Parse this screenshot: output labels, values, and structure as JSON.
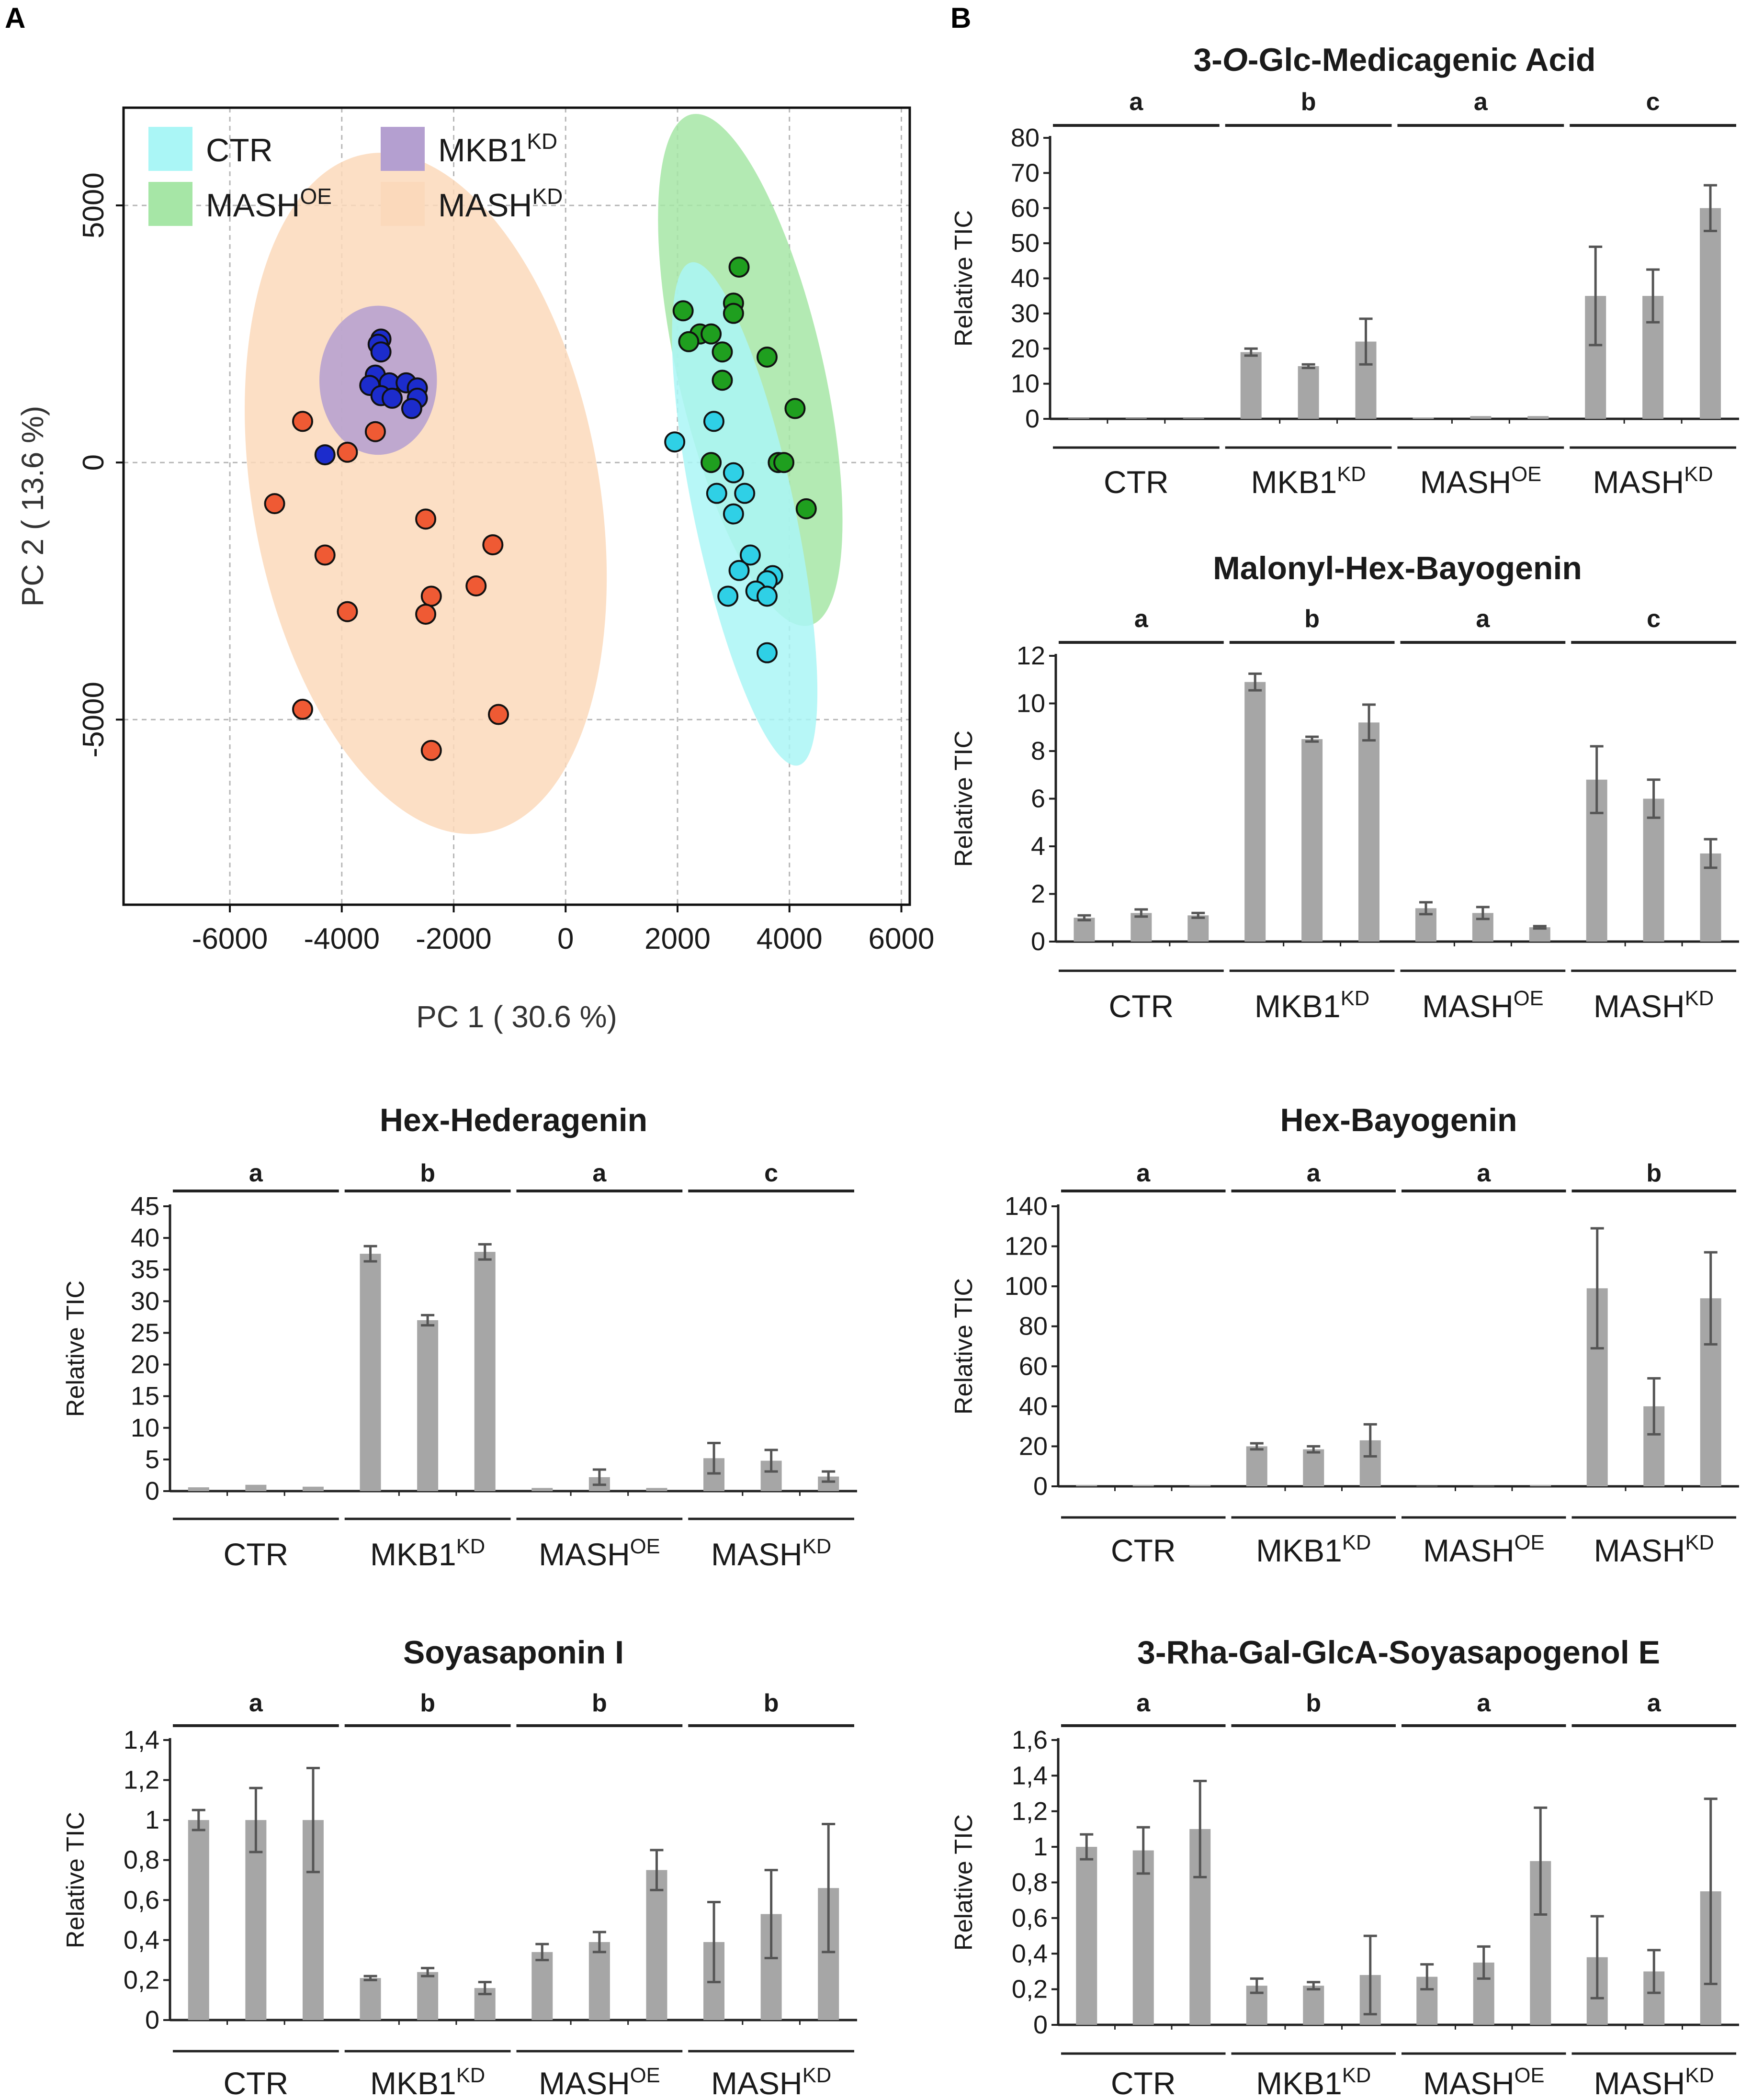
{
  "panels": {
    "a": "A",
    "b": "B"
  },
  "pca": {
    "type": "scatter",
    "xlabel": "PC 1 ( 30.6 %)",
    "ylabel": "PC 2 ( 13.6 %)",
    "xlim": [
      -7900,
      6150
    ],
    "ylim": [
      -8600,
      6900
    ],
    "xticks": [
      "-6000",
      "-4000",
      "-2000",
      "0",
      "2000",
      "4000",
      "6000"
    ],
    "yticks": [
      "5000",
      "0",
      "-5000"
    ],
    "legend": [
      {
        "key": "CTR",
        "label": "CTR",
        "sup": "",
        "color": "#aaf6f6"
      },
      {
        "key": "MKB1",
        "label": "MKB1",
        "sup": "KD",
        "color": "#b49fd0"
      },
      {
        "key": "MASHOE",
        "label": "MASH",
        "sup": "OE",
        "color": "#a6e6a6"
      },
      {
        "key": "MASHKD",
        "label": "MASH",
        "sup": "KD",
        "color": "#fbd9bb"
      }
    ],
    "groups": [
      {
        "key": "MASHKD",
        "fill": "#fbd9bb",
        "marker": "#ef5a34",
        "ellipse": {
          "cx": -2500,
          "cy": -600,
          "rx": 3100,
          "ry": 6700,
          "angle": -10
        },
        "points": [
          [
            -4700,
            800
          ],
          [
            -3400,
            600
          ],
          [
            -3900,
            200
          ],
          [
            -5200,
            -800
          ],
          [
            -2500,
            -1100
          ],
          [
            -1300,
            -1600
          ],
          [
            -4300,
            -1800
          ],
          [
            -1600,
            -2400
          ],
          [
            -2400,
            -2600
          ],
          [
            -3900,
            -2900
          ],
          [
            -2500,
            -2950
          ],
          [
            -4700,
            -4800
          ],
          [
            -1200,
            -4900
          ],
          [
            -2400,
            -5600
          ]
        ]
      },
      {
        "key": "MKB1",
        "fill": "#b49fd0",
        "marker": "#1c2ccc",
        "ellipse": {
          "cx": -3350,
          "cy": 1600,
          "rx": 1050,
          "ry": 1450,
          "angle": 0
        },
        "points": [
          [
            -3300,
            2400
          ],
          [
            -3350,
            2300
          ],
          [
            -3300,
            2150
          ],
          [
            -3400,
            1700
          ],
          [
            -3150,
            1550
          ],
          [
            -2850,
            1550
          ],
          [
            -3500,
            1500
          ],
          [
            -3300,
            1300
          ],
          [
            -3100,
            1250
          ],
          [
            -2650,
            1450
          ],
          [
            -2650,
            1250
          ],
          [
            -2750,
            1050
          ],
          [
            -4300,
            150
          ]
        ]
      },
      {
        "key": "MASHOE",
        "fill": "#a6e6a6",
        "marker": "#1f9f1f",
        "ellipse": {
          "cx": 3300,
          "cy": 1800,
          "rx": 1300,
          "ry": 5100,
          "angle": -13
        },
        "points": [
          [
            3100,
            3800
          ],
          [
            3000,
            3100
          ],
          [
            2100,
            2950
          ],
          [
            3000,
            2900
          ],
          [
            2400,
            2500
          ],
          [
            2600,
            2500
          ],
          [
            2200,
            2350
          ],
          [
            2800,
            2150
          ],
          [
            3600,
            2050
          ],
          [
            2800,
            1600
          ],
          [
            4100,
            1050
          ],
          [
            3800,
            0
          ],
          [
            3900,
            0
          ],
          [
            2600,
            0
          ],
          [
            4300,
            -900
          ]
        ]
      },
      {
        "key": "CTR",
        "fill": "#aaf6f6",
        "marker": "#2fd0e6",
        "ellipse": {
          "cx": 3200,
          "cy": -1000,
          "rx": 900,
          "ry": 5000,
          "angle": -12
        },
        "points": [
          [
            2650,
            800
          ],
          [
            1950,
            400
          ],
          [
            3000,
            -200
          ],
          [
            2700,
            -600
          ],
          [
            3200,
            -600
          ],
          [
            3000,
            -1000
          ],
          [
            3300,
            -1800
          ],
          [
            3100,
            -2100
          ],
          [
            3700,
            -2200
          ],
          [
            3600,
            -2300
          ],
          [
            3400,
            -2500
          ],
          [
            2900,
            -2600
          ],
          [
            3600,
            -2600
          ],
          [
            3600,
            -3700
          ]
        ]
      }
    ]
  },
  "bar_charts": [
    {
      "type": "bar",
      "title": "3-O-Glc-Medicagenic Acid",
      "ylabel": "Relative TIC",
      "ymax": 80,
      "yticks": [
        "0",
        "10",
        "20",
        "30",
        "40",
        "50",
        "60",
        "70",
        "80"
      ],
      "groups": [
        {
          "label": "CTR",
          "sup": "",
          "letter": "a",
          "values": [
            0.2,
            0.2,
            0.2
          ],
          "errors": [
            0,
            0,
            0
          ]
        },
        {
          "label": "MKB1",
          "sup": "KD",
          "letter": "b",
          "values": [
            19,
            15,
            22
          ],
          "errors": [
            1,
            0.5,
            6.5
          ]
        },
        {
          "label": "MASH",
          "sup": "OE",
          "letter": "a",
          "values": [
            0.3,
            0.8,
            0.8
          ],
          "errors": [
            0,
            0,
            0
          ]
        },
        {
          "label": "MASH",
          "sup": "KD",
          "letter": "c",
          "values": [
            35,
            35,
            60
          ],
          "errors": [
            14,
            7.5,
            6.5
          ]
        }
      ]
    },
    {
      "type": "bar",
      "title": "Malonyl-Hex-Bayogenin",
      "ylabel": "Relative TIC",
      "ymax": 12,
      "yticks": [
        "0",
        "2",
        "4",
        "6",
        "8",
        "10",
        "12"
      ],
      "groups": [
        {
          "label": "CTR",
          "sup": "",
          "letter": "a",
          "values": [
            1.0,
            1.2,
            1.1
          ],
          "errors": [
            0.1,
            0.15,
            0.1
          ]
        },
        {
          "label": "MKB1",
          "sup": "KD",
          "letter": "b",
          "values": [
            10.9,
            8.5,
            9.2
          ],
          "errors": [
            0.35,
            0.1,
            0.75
          ]
        },
        {
          "label": "MASH",
          "sup": "OE",
          "letter": "a",
          "values": [
            1.4,
            1.2,
            0.6
          ],
          "errors": [
            0.25,
            0.25,
            0.05
          ]
        },
        {
          "label": "MASH",
          "sup": "KD",
          "letter": "c",
          "values": [
            6.8,
            6.0,
            3.7
          ],
          "errors": [
            1.4,
            0.8,
            0.6
          ]
        }
      ]
    },
    {
      "type": "bar",
      "title": "Hex-Hederagenin",
      "ylabel": "Relative TIC",
      "ymax": 45,
      "yticks": [
        "0",
        "5",
        "10",
        "15",
        "20",
        "25",
        "30",
        "35",
        "40",
        "45"
      ],
      "groups": [
        {
          "label": "CTR",
          "sup": "",
          "letter": "a",
          "values": [
            0.6,
            1.0,
            0.7
          ],
          "errors": [
            0,
            0,
            0
          ]
        },
        {
          "label": "MKB1",
          "sup": "KD",
          "letter": "b",
          "values": [
            37.5,
            27,
            37.8
          ],
          "errors": [
            1.2,
            0.8,
            1.2
          ]
        },
        {
          "label": "MASH",
          "sup": "OE",
          "letter": "a",
          "values": [
            0.5,
            2.2,
            0.5
          ],
          "errors": [
            0,
            1.2,
            0
          ]
        },
        {
          "label": "MASH",
          "sup": "KD",
          "letter": "c",
          "values": [
            5.2,
            4.8,
            2.3
          ],
          "errors": [
            2.4,
            1.7,
            0.8
          ]
        }
      ]
    },
    {
      "type": "bar",
      "title": "Hex-Bayogenin",
      "ylabel": "Relative TIC",
      "ymax": 140,
      "yticks": [
        "0",
        "20",
        "40",
        "60",
        "80",
        "100",
        "120",
        "140"
      ],
      "groups": [
        {
          "label": "CTR",
          "sup": "",
          "letter": "a",
          "values": [
            0.5,
            0.5,
            0.5
          ],
          "errors": [
            0,
            0,
            0
          ]
        },
        {
          "label": "MKB1",
          "sup": "KD",
          "letter": "a",
          "values": [
            20,
            18.5,
            23
          ],
          "errors": [
            1.5,
            1.5,
            8
          ]
        },
        {
          "label": "MASH",
          "sup": "OE",
          "letter": "a",
          "values": [
            0.2,
            0.2,
            0.5
          ],
          "errors": [
            0,
            0,
            0
          ]
        },
        {
          "label": "MASH",
          "sup": "KD",
          "letter": "b",
          "values": [
            99,
            40,
            94
          ],
          "errors": [
            30,
            14,
            23
          ]
        }
      ]
    },
    {
      "type": "bar",
      "title": "Soyasaponin I",
      "ylabel": "Relative TIC",
      "ymax": 1.4,
      "yticks": [
        "0",
        "0,2",
        "0,4",
        "0,6",
        "0,8",
        "1",
        "1,2",
        "1,4"
      ],
      "groups": [
        {
          "label": "CTR",
          "sup": "",
          "letter": "a",
          "values": [
            1.0,
            1.0,
            1.0
          ],
          "errors": [
            0.05,
            0.16,
            0.26
          ]
        },
        {
          "label": "MKB1",
          "sup": "KD",
          "letter": "b",
          "values": [
            0.21,
            0.24,
            0.16
          ],
          "errors": [
            0.01,
            0.02,
            0.03
          ]
        },
        {
          "label": "MASH",
          "sup": "OE",
          "letter": "b",
          "values": [
            0.34,
            0.39,
            0.75
          ],
          "errors": [
            0.04,
            0.05,
            0.1
          ]
        },
        {
          "label": "MASH",
          "sup": "KD",
          "letter": "b",
          "values": [
            0.39,
            0.53,
            0.66
          ],
          "errors": [
            0.2,
            0.22,
            0.32
          ]
        }
      ]
    },
    {
      "type": "bar",
      "title": "3-Rha-Gal-GlcA-Soyasapogenol E",
      "ylabel": "Relative TIC",
      "ymax": 1.6,
      "yticks": [
        "0",
        "0,2",
        "0,4",
        "0,6",
        "0,8",
        "1",
        "1,2",
        "1,4",
        "1,6"
      ],
      "groups": [
        {
          "label": "CTR",
          "sup": "",
          "letter": "a",
          "values": [
            1.0,
            0.98,
            1.1
          ],
          "errors": [
            0.07,
            0.13,
            0.27
          ]
        },
        {
          "label": "MKB1",
          "sup": "KD",
          "letter": "b",
          "values": [
            0.22,
            0.22,
            0.28
          ],
          "errors": [
            0.04,
            0.02,
            0.22
          ]
        },
        {
          "label": "MASH",
          "sup": "OE",
          "letter": "a",
          "values": [
            0.27,
            0.35,
            0.92
          ],
          "errors": [
            0.07,
            0.09,
            0.3
          ]
        },
        {
          "label": "MASH",
          "sup": "KD",
          "letter": "a",
          "values": [
            0.38,
            0.3,
            0.75
          ],
          "errors": [
            0.23,
            0.12,
            0.52
          ]
        }
      ]
    }
  ],
  "colors": {
    "bar": "#a6a6a6",
    "error": "#555555",
    "axis": "#222222",
    "grid": "#b7b7b7"
  }
}
